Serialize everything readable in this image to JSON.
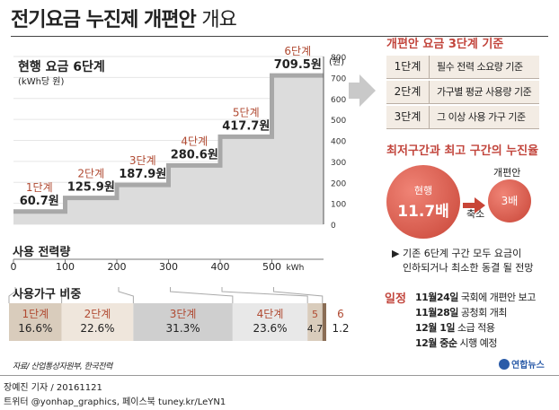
{
  "title_bold": "전기요금 누진제 개편안",
  "title_light": "개요",
  "chart_data": {
    "type": "step",
    "title": "현행 요금 6단계",
    "subtitle": "(kWh당 원)",
    "ylabel_unit": "(원)",
    "ylim": [
      0,
      800
    ],
    "yticks": [
      0,
      100,
      200,
      300,
      400,
      500,
      600,
      700,
      800
    ],
    "xlabel": "사용 전력량",
    "x_unit": "kWh",
    "xlim": [
      0,
      600
    ],
    "xticks": [
      0,
      100,
      200,
      300,
      400,
      500
    ],
    "tiers": [
      {
        "name": "1단계",
        "price": 60.7,
        "price_label": "60.7원",
        "from_kwh": 0,
        "to_kwh": 100
      },
      {
        "name": "2단계",
        "price": 125.9,
        "price_label": "125.9원",
        "from_kwh": 100,
        "to_kwh": 200
      },
      {
        "name": "3단계",
        "price": 187.9,
        "price_label": "187.9원",
        "from_kwh": 200,
        "to_kwh": 300
      },
      {
        "name": "4단계",
        "price": 280.6,
        "price_label": "280.6원",
        "from_kwh": 300,
        "to_kwh": 400
      },
      {
        "name": "5단계",
        "price": 417.7,
        "price_label": "417.7원",
        "from_kwh": 400,
        "to_kwh": 500
      },
      {
        "name": "6단계",
        "price": 709.5,
        "price_label": "709.5원",
        "from_kwh": 500,
        "to_kwh": 600
      }
    ],
    "household_share": {
      "title": "사용가구 비중",
      "segments": [
        {
          "name": "1단계",
          "percent": 16.6,
          "label": "16.6%",
          "color": "#d9ccbc"
        },
        {
          "name": "2단계",
          "percent": 22.6,
          "label": "22.6%",
          "color": "#efe6dc"
        },
        {
          "name": "3단계",
          "percent": 31.3,
          "label": "31.3%",
          "color": "#cfcfcf"
        },
        {
          "name": "4단계",
          "percent": 23.6,
          "label": "23.6%",
          "color": "#e8e8e8"
        },
        {
          "name": "5",
          "percent": 4.7,
          "label": "4.7",
          "color": "#d9ccbc"
        },
        {
          "name": "6",
          "percent": 1.2,
          "label": "1.2",
          "color": "#8a6d55"
        }
      ]
    }
  },
  "reform_panel": {
    "title": "개편안 요금 3단계 기준",
    "rows": [
      {
        "num": "1단계",
        "desc": "필수 전력 소요량 기준"
      },
      {
        "num": "2단계",
        "desc": "가구별 평균 사용량 기준"
      },
      {
        "num": "3단계",
        "desc": "그 이상 사용 가구 기준"
      }
    ]
  },
  "multiplier_panel": {
    "title": "최저구간과 최고 구간의 누진율",
    "current_label": "현행",
    "current_value": "11.7배",
    "reform_label": "개편안",
    "reform_value": "3배",
    "reduce_label": "축소",
    "note_line1": "▶ 기존 6단계 구간 모두 요금이",
    "note_line2": "인하되거나 최소한 동결 될 전망"
  },
  "schedule": {
    "label": "일정",
    "items": [
      {
        "date": "11월24일",
        "text": "국회에 개편안 보고"
      },
      {
        "date": "11월28일",
        "text": "공청회 개최"
      },
      {
        "date": "12월 1일",
        "text": "소급 적용"
      },
      {
        "date": "12월 중순",
        "text": "시행 예정"
      }
    ]
  },
  "source": "자료/ 산업통상자원부, 한국전력",
  "logo_text": "연합뉴스",
  "credit_line1": "장예진 기자 / 20161121",
  "credit_line2": "트위터 @yonhap_graphics, 페이스북 tuney.kr/LeYN1",
  "colors": {
    "accent": "#c2453c",
    "tier_label": "#b04a32",
    "step_fill": "#dcdcdc",
    "step_line": "#a8a8a8"
  }
}
